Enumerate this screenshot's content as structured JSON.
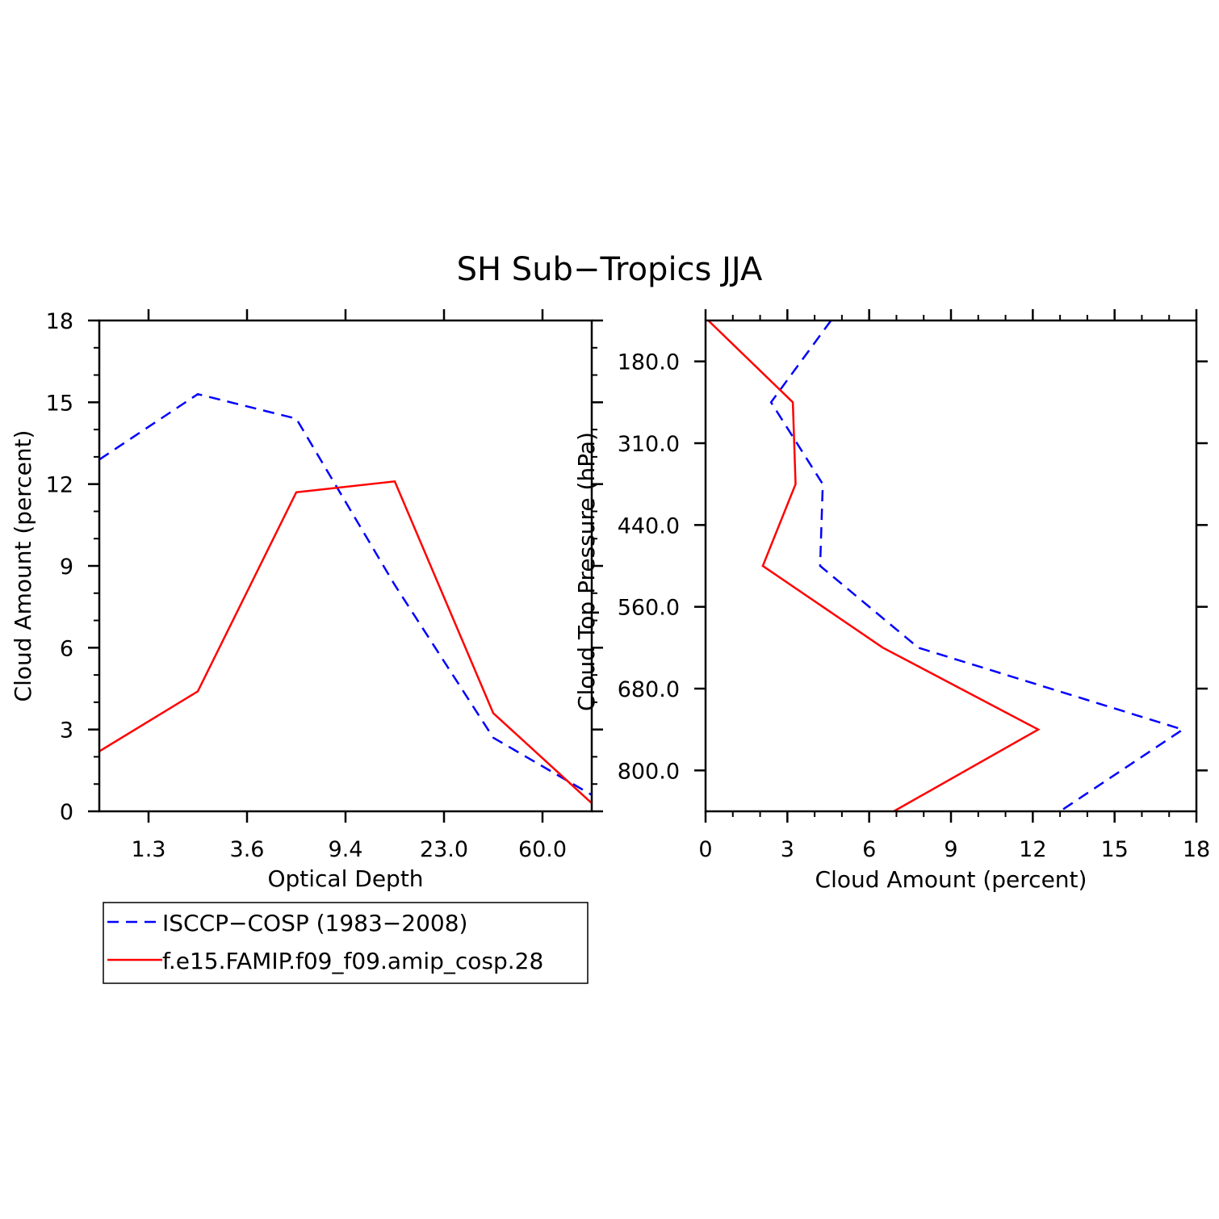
{
  "title": "SH Sub−Tropics JJA",
  "colors": {
    "isccp": "#0000ff",
    "model": "#ff0000",
    "axes": "#000000"
  },
  "legend": [
    {
      "label": "ISCCP−COSP (1983−2008)",
      "style": "dashed",
      "color": "#0000ff"
    },
    {
      "label": "f.e15.FAMIP.f09_f09.amip_cosp.28",
      "style": "solid",
      "color": "#ff0000"
    }
  ],
  "chart_data": [
    {
      "type": "line",
      "title": "",
      "xlabel": "Optical Depth",
      "ylabel": "Cloud Amount (percent)",
      "x_tick_labels": [
        "1.3",
        "3.6",
        "9.4",
        "23.0",
        "60.0"
      ],
      "y_ticks": [
        "0",
        "3",
        "6",
        "9",
        "12",
        "15",
        "18"
      ],
      "ylim": [
        0,
        18
      ],
      "grid": false,
      "series": [
        {
          "name": "ISCCP−COSP (1983−2008)",
          "style": "dashed",
          "color": "#0000ff",
          "values": [
            12.9,
            15.3,
            14.4,
            8.3,
            2.7,
            0.6
          ]
        },
        {
          "name": "f.e15.FAMIP.f09_f09.amip_cosp.28",
          "style": "solid",
          "color": "#ff0000",
          "values": [
            2.2,
            4.4,
            11.7,
            12.1,
            3.6,
            0.3
          ]
        }
      ]
    },
    {
      "type": "line",
      "title": "",
      "xlabel": "Cloud Amount (percent)",
      "ylabel": "Cloud Top Pressure (hPa)",
      "x_ticks": [
        "0",
        "3",
        "6",
        "9",
        "12",
        "15",
        "18"
      ],
      "xlim": [
        0,
        18
      ],
      "y_tick_labels": [
        "180.0",
        "310.0",
        "440.0",
        "560.0",
        "680.0",
        "800.0"
      ],
      "grid": false,
      "series": [
        {
          "name": "ISCCP−COSP (1983−2008)",
          "style": "dashed",
          "color": "#0000ff",
          "values": [
            4.6,
            2.4,
            4.3,
            4.2,
            7.8,
            17.5,
            13.0
          ]
        },
        {
          "name": "f.e15.FAMIP.f09_f09.amip_cosp.28",
          "style": "solid",
          "color": "#ff0000",
          "values": [
            0.1,
            3.2,
            3.3,
            2.1,
            6.5,
            12.2,
            6.9
          ]
        }
      ]
    }
  ]
}
